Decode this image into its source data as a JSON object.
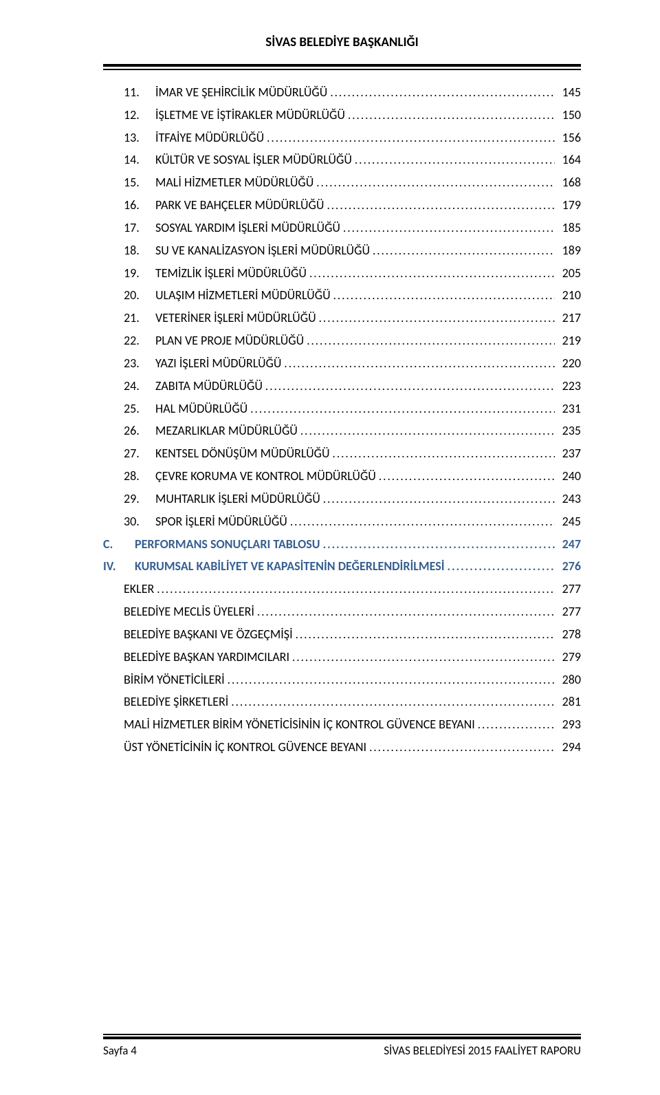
{
  "header": {
    "title": "SİVAS BELEDİYE BAŞKANLIĞI"
  },
  "colors": {
    "heading_blue": "#365f91",
    "text_black": "#000000",
    "background": "#ffffff"
  },
  "typography": {
    "body_fontsize_pt": 11,
    "header_fontsize_pt": 12,
    "font_family": "Calibri"
  },
  "toc": {
    "items_level1": [
      {
        "num": "11.",
        "title": "İMAR VE ŞEHİRCİLİK MÜDÜRLÜĞÜ",
        "page": "145"
      },
      {
        "num": "12.",
        "title": "İŞLETME VE İŞTİRAKLER MÜDÜRLÜĞÜ",
        "page": "150"
      },
      {
        "num": "13.",
        "title": "İTFAİYE MÜDÜRLÜĞÜ",
        "page": "156"
      },
      {
        "num": "14.",
        "title": "KÜLTÜR VE SOSYAL İŞLER MÜDÜRLÜĞÜ",
        "page": "164"
      },
      {
        "num": "15.",
        "title": "MALİ HİZMETLER MÜDÜRLÜĞÜ",
        "page": "168"
      },
      {
        "num": "16.",
        "title": "PARK VE BAHÇELER MÜDÜRLÜĞÜ",
        "page": "179"
      },
      {
        "num": "17.",
        "title": "SOSYAL YARDIM İŞLERİ MÜDÜRLÜĞÜ",
        "page": "185"
      },
      {
        "num": "18.",
        "title": "SU VE KANALİZASYON İŞLERİ MÜDÜRLÜĞÜ",
        "page": "189"
      },
      {
        "num": "19.",
        "title": "TEMİZLİK İŞLERİ MÜDÜRLÜĞÜ",
        "page": "205"
      },
      {
        "num": "20.",
        "title": "ULAŞIM HİZMETLERİ MÜDÜRLÜĞÜ",
        "page": "210"
      },
      {
        "num": "21.",
        "title": "VETERİNER İŞLERİ MÜDÜRLÜĞÜ",
        "page": "217"
      },
      {
        "num": "22.",
        "title": "PLAN VE PROJE MÜDÜRLÜĞÜ",
        "page": "219"
      },
      {
        "num": "23.",
        "title": "YAZI İŞLERİ MÜDÜRLÜĞÜ",
        "page": "220"
      },
      {
        "num": "24.",
        "title": "ZABITA MÜDÜRLÜĞÜ",
        "page": "223"
      },
      {
        "num": "25.",
        "title": "HAL MÜDÜRLÜĞÜ",
        "page": "231"
      },
      {
        "num": "26.",
        "title": "MEZARLIKLAR MÜDÜRLÜĞÜ",
        "page": "235"
      },
      {
        "num": "27.",
        "title": "KENTSEL DÖNÜŞÜM MÜDÜRLÜĞÜ",
        "page": "237"
      },
      {
        "num": "28.",
        "title": "ÇEVRE KORUMA VE KONTROL MÜDÜRLÜĞÜ",
        "page": "240"
      },
      {
        "num": "29.",
        "title": "MUHTARLIK İŞLERİ MÜDÜRLÜĞÜ",
        "page": "243"
      },
      {
        "num": "30.",
        "title": "SPOR İŞLERİ MÜDÜRLÜĞÜ",
        "page": "245"
      }
    ],
    "section_c": {
      "letter": "C.",
      "title": "PERFORMANS SONUÇLARI TABLOSU",
      "page": "247"
    },
    "section_iv": {
      "letter": "IV.",
      "title": "KURUMSAL KABİLİYET VE KAPASİTENİN DEĞERLENDİRİLMESİ",
      "page": "276"
    },
    "items_level2": [
      {
        "title": "EKLER",
        "page": "277"
      },
      {
        "title": "BELEDİYE MECLİS ÜYELERİ",
        "page": "277"
      },
      {
        "title": "BELEDİYE BAŞKANI VE ÖZGEÇMİŞİ",
        "page": "278"
      },
      {
        "title": "BELEDİYE BAŞKAN YARDIMCILARI",
        "page": "279"
      },
      {
        "title": "BİRİM YÖNETİCİLERİ",
        "page": "280"
      },
      {
        "title": "BELEDİYE ŞİRKETLERİ",
        "page": "281"
      },
      {
        "title": "MALİ HİZMETLER BİRİM YÖNETİCİSİNİN İÇ KONTROL GÜVENCE BEYANI",
        "page": "293"
      },
      {
        "title": "ÜST YÖNETİCİNİN İÇ KONTROL GÜVENCE BEYANI",
        "page": "294"
      }
    ]
  },
  "footer": {
    "left": "Sayfa 4",
    "right": "SİVAS BELEDİYESİ 2015 FAALİYET RAPORU"
  }
}
